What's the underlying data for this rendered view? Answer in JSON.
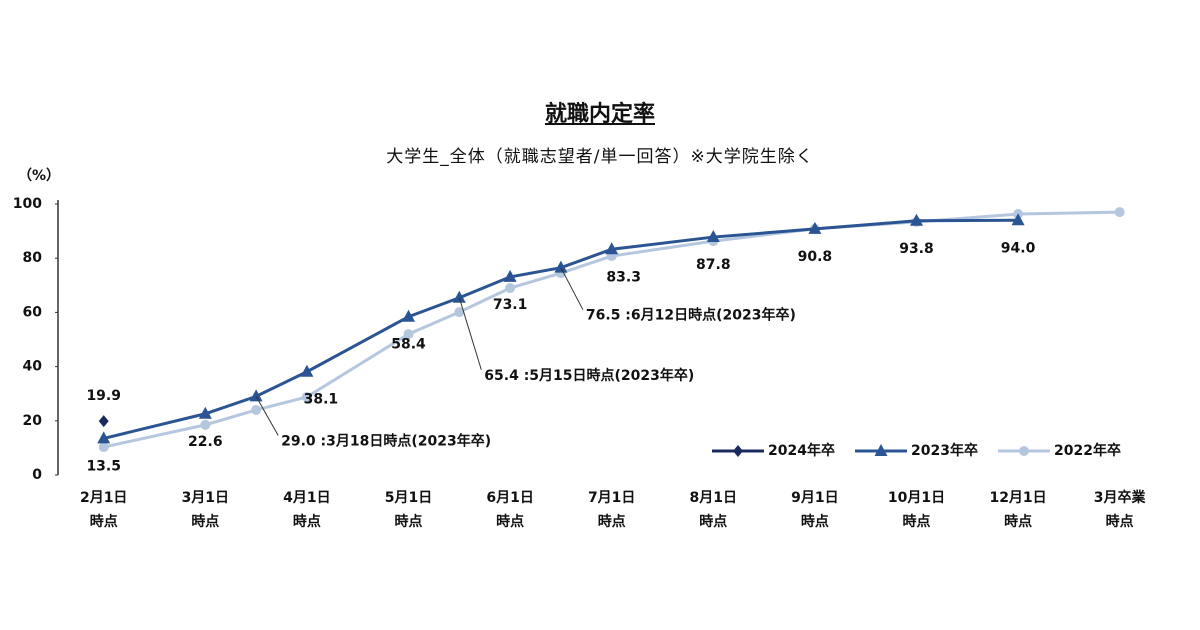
{
  "chart_data": {
    "type": "line",
    "title": "就職内定率",
    "subtitle": "大学生_全体（就職志望者/単一回答）※大学院生除く",
    "y_label": "（%）",
    "xlim": [
      -0.45,
      10.2
    ],
    "xticks": [
      {
        "value": 0,
        "label": "2月1日\n時点"
      },
      {
        "value": 1,
        "label": "3月1日\n時点"
      },
      {
        "value": 2,
        "label": "4月1日\n時点"
      },
      {
        "value": 3,
        "label": "5月1日\n時点"
      },
      {
        "value": 4,
        "label": "6月1日\n時点"
      },
      {
        "value": 5,
        "label": "7月1日\n時点"
      },
      {
        "value": 6,
        "label": "8月1日\n時点"
      },
      {
        "value": 7,
        "label": "9月1日\n時点"
      },
      {
        "value": 8,
        "label": "10月1日\n時点"
      },
      {
        "value": 9,
        "label": "12月1日\n時点"
      },
      {
        "value": 10,
        "label": "3月卒業\n時点"
      }
    ],
    "ylim": [
      0,
      100
    ],
    "yticks": [
      0,
      20,
      40,
      60,
      80,
      100
    ],
    "legend": "bottom-right",
    "series": [
      {
        "name": "2024年卒",
        "color": "#1b2a5c",
        "marker": "diamond",
        "x": [
          0
        ],
        "values": [
          19.9
        ]
      },
      {
        "name": "2023年卒",
        "color": "#2b5592",
        "marker": "triangle",
        "x": [
          0,
          1,
          1.5,
          2,
          3,
          3.5,
          4,
          4.5,
          5,
          6,
          7,
          8,
          9
        ],
        "values": [
          13.5,
          22.6,
          29.0,
          38.1,
          58.4,
          65.4,
          73.1,
          76.5,
          83.3,
          87.8,
          90.8,
          93.8,
          94.0
        ],
        "value_labels": [
          "13.5",
          "22.6",
          "29.0 :3月18日時点(2023年卒)",
          "38.1",
          "58.4",
          "65.4 :5月15日時点(2023年卒)",
          "73.1",
          "76.5 :6月12日時点(2023年卒)",
          "83.3",
          "87.8",
          "90.8",
          "93.8",
          "94.0"
        ]
      },
      {
        "name": "2022年卒",
        "color": "#b5c7de",
        "marker": "circle",
        "x": [
          0,
          1,
          1.5,
          2,
          3,
          3.5,
          4,
          4.5,
          5,
          6,
          7,
          8,
          9,
          10
        ],
        "values": [
          10.3,
          18.5,
          24.0,
          28.8,
          52.0,
          60.1,
          69.0,
          74.5,
          80.8,
          86.3,
          90.8,
          93.4,
          96.3,
          97.0
        ]
      }
    ]
  }
}
